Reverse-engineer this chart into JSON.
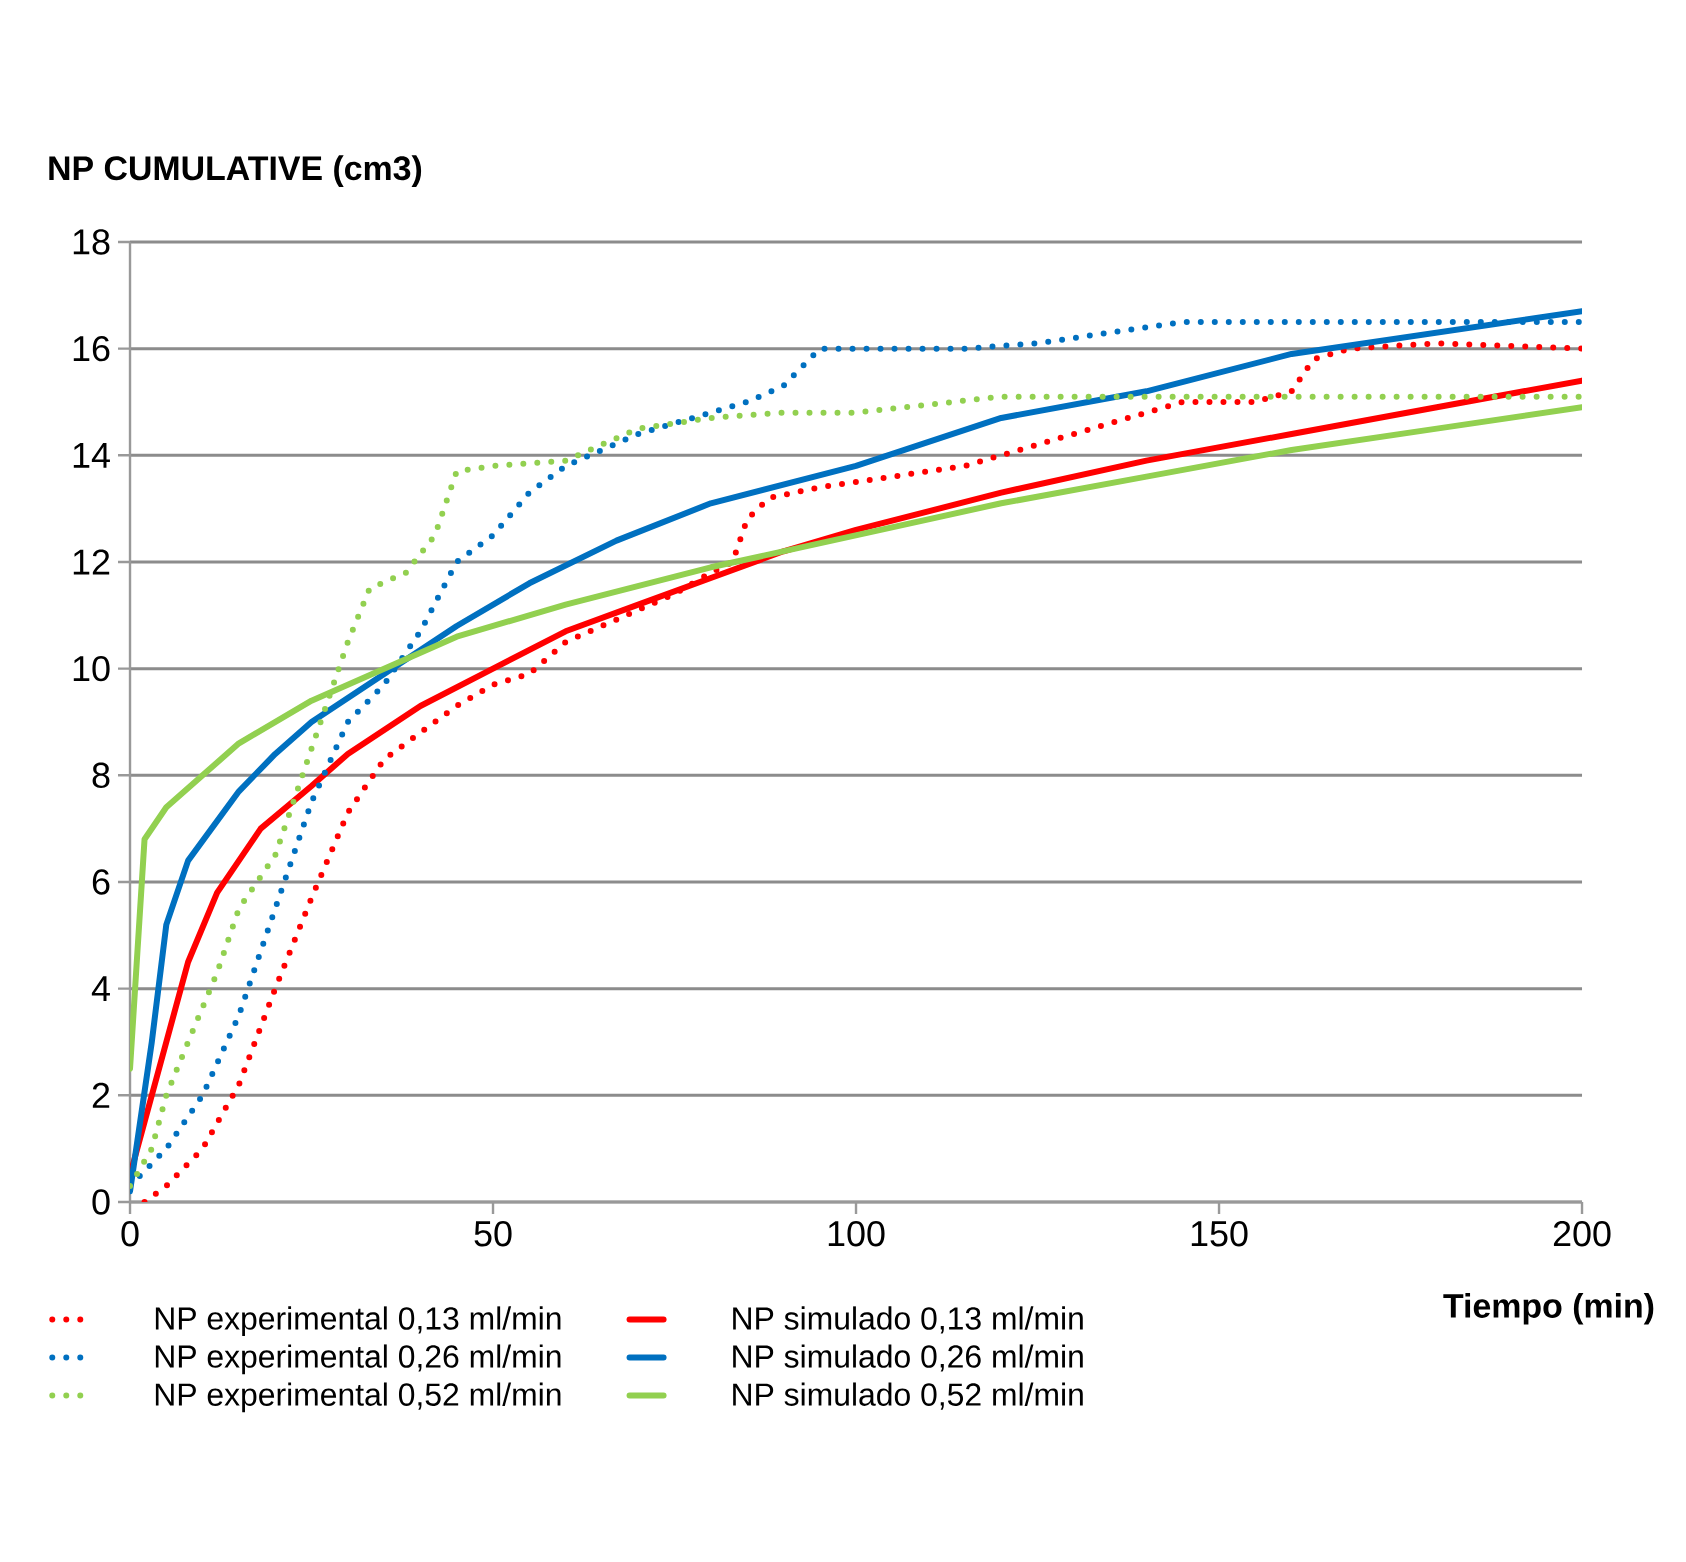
{
  "chart_data": {
    "type": "line",
    "xlabel": "Tiempo  (min)",
    "ylabel": "NP   CUMULATIVE (cm3)",
    "xlim": [
      0,
      200
    ],
    "ylim": [
      0,
      18
    ],
    "xticks": [
      0,
      50,
      100,
      150,
      200
    ],
    "yticks": [
      0,
      2,
      4,
      6,
      8,
      10,
      12,
      14,
      16,
      18
    ],
    "grid": "y",
    "legend": "bottom",
    "series": [
      {
        "name": "NP experimental 0,13 ml/min",
        "color": "#ff0000",
        "line_style": "dotted",
        "x": [
          2,
          5,
          10,
          15,
          20,
          25,
          30,
          35,
          40,
          45,
          50,
          55,
          60,
          65,
          70,
          75,
          80,
          83,
          85,
          88,
          95,
          105,
          115,
          125,
          135,
          145,
          155,
          160,
          163,
          168,
          180,
          200
        ],
        "values": [
          0,
          0.3,
          1.0,
          2.2,
          4.0,
          5.7,
          7.3,
          8.3,
          8.8,
          9.3,
          9.7,
          9.9,
          10.5,
          10.8,
          11.1,
          11.4,
          11.8,
          12.0,
          12.8,
          13.2,
          13.4,
          13.6,
          13.8,
          14.2,
          14.6,
          15.0,
          15.0,
          15.2,
          15.8,
          16.0,
          16.1,
          16.0
        ]
      },
      {
        "name": "NP simulado 0,13 ml/min",
        "color": "#ff0000",
        "line_style": "solid",
        "x": [
          0,
          2,
          5,
          8,
          12,
          18,
          25,
          30,
          40,
          50,
          60,
          70,
          80,
          90,
          100,
          120,
          140,
          160,
          180,
          200
        ],
        "values": [
          0.5,
          1.5,
          3.0,
          4.5,
          5.8,
          7.0,
          7.8,
          8.4,
          9.3,
          10.0,
          10.7,
          11.2,
          11.7,
          12.2,
          12.6,
          13.3,
          13.9,
          14.4,
          14.9,
          15.4
        ]
      },
      {
        "name": "NP experimental 0,26 ml/min",
        "color": "#0070c0",
        "line_style": "dotted",
        "x": [
          0,
          5,
          10,
          15,
          20,
          25,
          30,
          35,
          40,
          45,
          50,
          55,
          60,
          70,
          80,
          85,
          90,
          95,
          105,
          115,
          125,
          135,
          145,
          160,
          180,
          200
        ],
        "values": [
          0.3,
          1.0,
          2.0,
          3.5,
          5.5,
          7.5,
          9.0,
          9.7,
          10.7,
          12.0,
          12.5,
          13.3,
          13.8,
          14.4,
          14.8,
          15.0,
          15.3,
          16.0,
          16.0,
          16.0,
          16.1,
          16.3,
          16.5,
          16.5,
          16.5,
          16.5
        ]
      },
      {
        "name": "NP simulado 0,26 ml/min",
        "color": "#0070c0",
        "line_style": "solid",
        "x": [
          0,
          3,
          5,
          8,
          15,
          20,
          25,
          35,
          45,
          55,
          67,
          80,
          100,
          120,
          140,
          160,
          180,
          200
        ],
        "values": [
          0.2,
          3.0,
          5.2,
          6.4,
          7.7,
          8.4,
          9.0,
          9.9,
          10.8,
          11.6,
          12.4,
          13.1,
          13.8,
          14.7,
          15.2,
          15.9,
          16.3,
          16.7
        ]
      },
      {
        "name": "NP experimental 0,52 ml/min",
        "color": "#92d050",
        "line_style": "dotted",
        "x": [
          0,
          3,
          5,
          8,
          12,
          15,
          20,
          25,
          30,
          33,
          38,
          42,
          45,
          50,
          60,
          70,
          80,
          90,
          100,
          120,
          140,
          160,
          180,
          200
        ],
        "values": [
          0.3,
          1.0,
          2.0,
          3.0,
          4.3,
          5.5,
          6.5,
          8.5,
          10.5,
          11.5,
          11.8,
          12.5,
          13.7,
          13.8,
          13.9,
          14.5,
          14.7,
          14.8,
          14.8,
          15.1,
          15.1,
          15.1,
          15.1,
          15.1
        ]
      },
      {
        "name": "NP simulado 0,52 ml/min",
        "color": "#92d050",
        "line_style": "solid",
        "x": [
          0,
          2,
          5,
          10,
          15,
          25,
          35,
          45,
          60,
          80,
          100,
          120,
          140,
          160,
          180,
          200
        ],
        "values": [
          2.5,
          6.8,
          7.4,
          8.0,
          8.6,
          9.4,
          10.0,
          10.6,
          11.2,
          11.9,
          12.5,
          13.1,
          13.6,
          14.1,
          14.5,
          14.9
        ]
      }
    ]
  }
}
